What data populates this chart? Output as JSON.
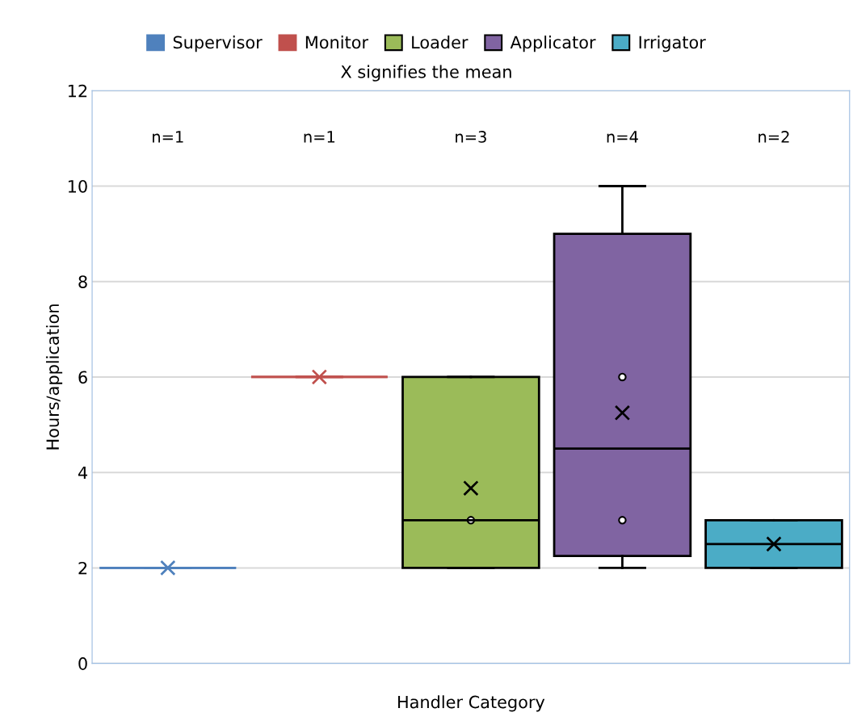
{
  "chart_data": {
    "type": "box",
    "subtitle": "X signifies the mean",
    "xlabel": "Handler Category",
    "ylabel": "Hours/application",
    "categories": [
      null,
      null,
      null,
      null,
      null
    ],
    "series": [
      {
        "name": "Supervisor",
        "color": "#4f81bd",
        "boxes": [
          {
            "low": 2,
            "q1": 2,
            "median": 2,
            "q3": 2,
            "high": 2,
            "mean": 2
          },
          null,
          null,
          null,
          null
        ]
      },
      {
        "name": "Monitor",
        "color": "#c0504d",
        "boxes": [
          null,
          {
            "low": 6,
            "q1": 6,
            "median": 6,
            "q3": 6,
            "high": 6,
            "mean": 6
          },
          null,
          null,
          null
        ]
      },
      {
        "name": "Loader",
        "color": "#9bbb59",
        "boxes": [
          null,
          null,
          {
            "low": 2,
            "q1": 2,
            "median": 3,
            "q3": 6,
            "high": 6,
            "mean": 3.67,
            "outliers": [
              3
            ]
          },
          null,
          null
        ]
      },
      {
        "name": "Applicator",
        "color": "#8064a2",
        "boxes": [
          null,
          null,
          null,
          {
            "low": 2,
            "q1": 2.25,
            "median": 4.5,
            "q3": 9,
            "high": 10,
            "mean": 5.25,
            "outliers": [
              3,
              6
            ]
          },
          null
        ]
      },
      {
        "name": "Irrigator",
        "color": "#4bacc6",
        "boxes": [
          null,
          null,
          null,
          null,
          {
            "low": 2,
            "q1": 2,
            "median": 2.5,
            "q3": 3,
            "high": 3,
            "mean": 2.5
          }
        ]
      }
    ],
    "annotations": [
      "n=1",
      "n=1",
      "n=3",
      "n=4",
      "n=2"
    ],
    "ylim": [
      0,
      12
    ],
    "yticks": [
      0,
      2,
      4,
      6,
      8,
      10,
      12
    ],
    "grid": "y",
    "legend": "top",
    "marker": "cross"
  }
}
